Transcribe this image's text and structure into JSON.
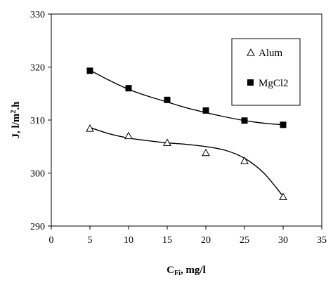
{
  "chart_data": {
    "type": "scatter",
    "title": "",
    "xlabel": {
      "main": "C",
      "sub": "Fi",
      "rest": ", mg/l"
    },
    "ylabel": {
      "pre": "J, l/m",
      "sup": "2",
      "post": ".h"
    },
    "xlim": [
      0,
      35
    ],
    "ylim": [
      290,
      330
    ],
    "xticks": [
      0,
      5,
      10,
      15,
      20,
      25,
      30,
      35
    ],
    "yticks": [
      290,
      300,
      310,
      320,
      330
    ],
    "grid": false,
    "legend_position": "top-right",
    "series": [
      {
        "name": "Alum",
        "marker": "open-triangle",
        "color": "#000000",
        "x": [
          5,
          10,
          15,
          20,
          25,
          30
        ],
        "y": [
          308.4,
          307.0,
          305.7,
          303.8,
          302.3,
          295.5
        ],
        "fit": [
          [
            5,
            308.6
          ],
          [
            7.5,
            307.4
          ],
          [
            10,
            306.6
          ],
          [
            12.5,
            306.1
          ],
          [
            15,
            305.7
          ],
          [
            17.5,
            305.4
          ],
          [
            20,
            305.0
          ],
          [
            22.5,
            304.3
          ],
          [
            25,
            302.8
          ],
          [
            27.5,
            300.0
          ],
          [
            30,
            295.6
          ]
        ]
      },
      {
        "name": "MgCl2",
        "marker": "filled-square",
        "color": "#000000",
        "x": [
          5,
          10,
          15,
          20,
          25,
          30
        ],
        "y": [
          319.3,
          316.0,
          313.8,
          311.8,
          309.9,
          309.1
        ],
        "fit": [
          [
            5,
            319.4
          ],
          [
            7.5,
            317.5
          ],
          [
            10,
            315.8
          ],
          [
            12.5,
            314.5
          ],
          [
            15,
            313.4
          ],
          [
            17.5,
            312.3
          ],
          [
            20,
            311.4
          ],
          [
            22.5,
            310.6
          ],
          [
            25,
            309.9
          ],
          [
            27.5,
            309.4
          ],
          [
            30,
            309.1
          ]
        ]
      }
    ]
  }
}
